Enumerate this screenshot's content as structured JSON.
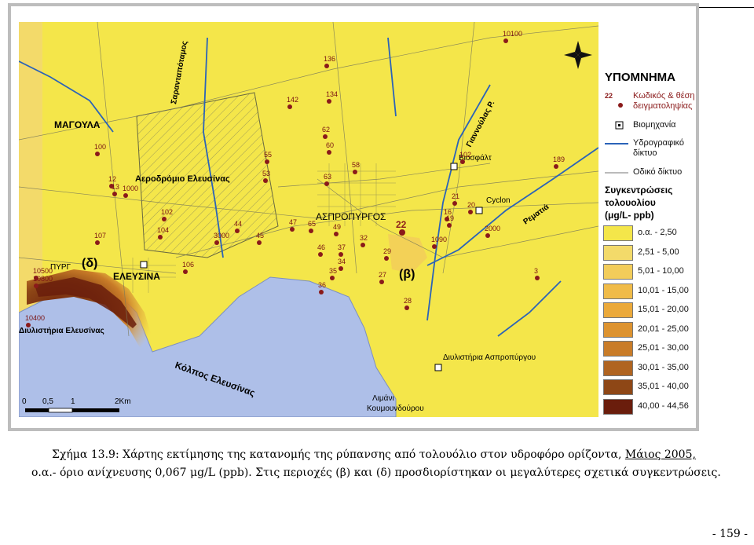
{
  "map": {
    "labels": {
      "magoula": "ΜΑΓΟΥΛΑ",
      "airport": "Αεροδρόμιο Ελευσίνας",
      "sarantapotamos": "Σαρανταπόταμος",
      "aspropyrgos": "ΑΣΠΡΟΠΥΡΓΟΣ",
      "elefsina": "ΕΛΕΥΣΙΝΑ",
      "delta": "(δ)",
      "beta": "(β)",
      "pyrgos": "ΠΥΡΓ",
      "refinery_elefsina": "Διυλιστήρια Ελευσίνας",
      "refinery_aspropyrgos": "Διυλιστήρια Ασπροπύργου",
      "gulf": "Κόλπος Ελευσίνας",
      "giannoulas": "Γιαννούλας Ρ.",
      "rematia": "Ρεματιά",
      "viosol": "Βιοσφάλτ",
      "cyclon": "Cyclon",
      "port_line1": "Λιμάνι",
      "port_line2": "Κουμουνδούρου",
      "point22": "22"
    },
    "sample_codes": [
      "10100",
      "136",
      "134",
      "142",
      "62",
      "60",
      "55",
      "53",
      "58",
      "63",
      "100",
      "12",
      "13",
      "1000",
      "102",
      "104",
      "3000",
      "44",
      "45",
      "47",
      "65",
      "49",
      "107",
      "106",
      "46",
      "37",
      "34",
      "35",
      "36",
      "32",
      "29",
      "27",
      "28",
      "1090",
      "16",
      "19",
      "20",
      "2000",
      "21",
      "102",
      "189",
      "3",
      "10500",
      "10800",
      "10400"
    ],
    "scalebar": {
      "ticks": [
        "0",
        "0,5",
        "1",
        "2Km"
      ]
    },
    "colors": {
      "land": "#f4e64a",
      "sea": "#aebfe8",
      "road": "#7a7a5a",
      "river": "#2b63b8",
      "point": "#8a1a1a"
    }
  },
  "legend": {
    "title": "ΥΠΟΜΝΗΜΑ",
    "sample_symbol": "22",
    "sample_text": [
      "Κωδικός & θέση",
      "δειγματοληψίας"
    ],
    "industry": "Βιομηχανία",
    "hydro": [
      "Υδρογραφικό",
      "δίκτυο"
    ],
    "road": "Οδικό δίκτυο",
    "conc_title": [
      "Συγκεντρώσεις",
      "τολουολίου",
      "(μg/L- ppb)"
    ],
    "classes": [
      {
        "label": "ο.α. - 2,50",
        "color": "#f4e64a"
      },
      {
        "label": "2,51 - 5,00",
        "color": "#f3da6a"
      },
      {
        "label": "5,01 - 10,00",
        "color": "#f2cc5a"
      },
      {
        "label": "10,01 - 15,00",
        "color": "#f0bb48"
      },
      {
        "label": "15,01 - 20,00",
        "color": "#eba93a"
      },
      {
        "label": "20,01 - 25,00",
        "color": "#dd9330"
      },
      {
        "label": "25,01 - 30,00",
        "color": "#c97c28"
      },
      {
        "label": "30,01 - 35,00",
        "color": "#b06420"
      },
      {
        "label": "35,01 - 40,00",
        "color": "#8e4716"
      },
      {
        "label": "40,00 - 44,56",
        "color": "#6a1d0c"
      }
    ]
  },
  "caption": {
    "line1_prefix": "Σχήμα 13.9: Χάρτης εκτίμησης της κατανομής της ρύπανσης από τολουόλιο στον υδροφόρο ορίζοντα,",
    "line1_ref": "Μάιος 2005,",
    "line2": "ο.α.- όριο ανίχνευσης 0,067 μg/L (ppb). Στις περιοχές (β) και (δ) προσδιορίστηκαν οι μεγαλύτερες σχετικά συγκεντρώσεις."
  },
  "page_number": "- 159 -"
}
